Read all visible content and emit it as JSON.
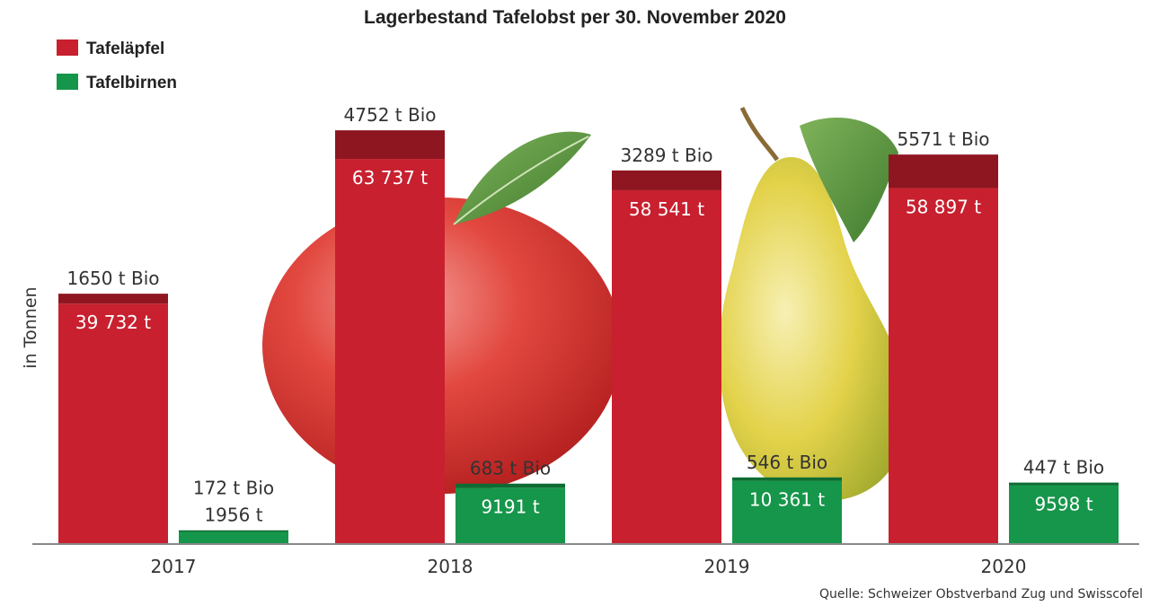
{
  "chart_data": {
    "type": "bar",
    "title": "Lagerbestand Tafelobst per 30. November 2020",
    "ylabel": "in Tonnen",
    "xlabel": "",
    "categories": [
      "2017",
      "2018",
      "2019",
      "2020"
    ],
    "ylim": [
      0,
      70000
    ],
    "grid": false,
    "legend_position": "top-left",
    "series": [
      {
        "name": "Tafeläpfel",
        "color": "#c8202f",
        "bio_color": "#8e1620",
        "values": [
          39732,
          63737,
          58541,
          58897
        ],
        "bio_values": [
          1650,
          4752,
          3289,
          5571
        ],
        "labels": [
          "39 732 t",
          "63 737 t",
          "58 541 t",
          "58 897 t"
        ],
        "bio_labels": [
          "1650 t Bio",
          "4752 t Bio",
          "3289 t Bio",
          "5571 t Bio"
        ]
      },
      {
        "name": "Tafelbirnen",
        "color": "#16964a",
        "bio_color": "#0e6b33",
        "values": [
          1956,
          9191,
          10361,
          9598
        ],
        "bio_values": [
          172,
          683,
          546,
          447
        ],
        "labels": [
          "1956 t",
          "9191 t",
          "10 361 t",
          "9598 t"
        ],
        "bio_labels": [
          "172 t Bio",
          "683 t Bio",
          "546 t Bio",
          "447 t Bio"
        ]
      }
    ],
    "source": "Quelle: Schweizer Obstverband Zug und Swisscofel"
  }
}
